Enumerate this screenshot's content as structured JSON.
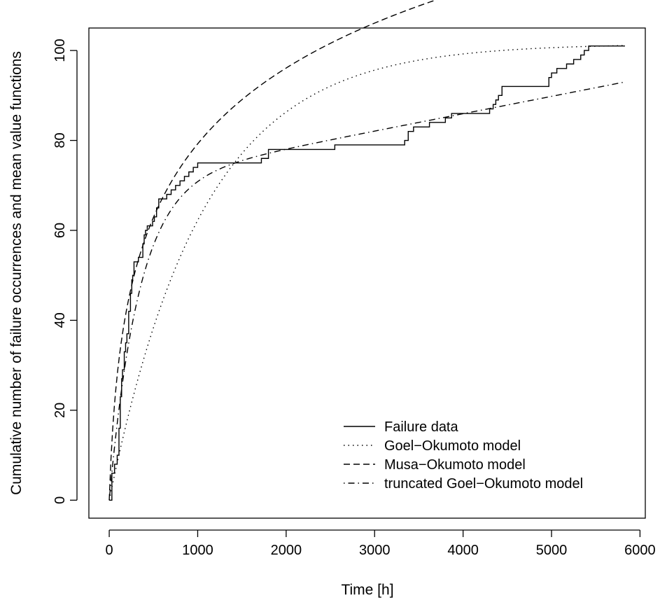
{
  "chart_data": {
    "type": "line",
    "title": "",
    "xlabel": "Time [h]",
    "ylabel": "Cumulative number of failure occurrences and mean value functions",
    "xlim": [
      -230,
      6060
    ],
    "ylim": [
      -4,
      105
    ],
    "xticks": [
      0,
      1000,
      2000,
      3000,
      4000,
      5000,
      6000
    ],
    "yticks": [
      0,
      20,
      40,
      60,
      80,
      100
    ],
    "grid": false,
    "legend_position": "bottom-right",
    "series": [
      {
        "name": "Failure data",
        "style": "solid",
        "step": true,
        "x": [
          0,
          30,
          60,
          90,
          110,
          125,
          140,
          150,
          170,
          185,
          200,
          220,
          240,
          255,
          265,
          280,
          300,
          320,
          330,
          380,
          395,
          410,
          430,
          470,
          490,
          510,
          535,
          560,
          580,
          650,
          700,
          750,
          800,
          850,
          900,
          950,
          1000,
          1040,
          1600,
          1720,
          1800,
          2500,
          2550,
          3340,
          3380,
          3440,
          3520,
          3620,
          3680,
          3800,
          3870,
          4250,
          4300,
          4340,
          4370,
          4400,
          4440,
          4470,
          4970,
          5000,
          5060,
          5170,
          5250,
          5330,
          5370,
          5420,
          5830
        ],
        "y": [
          0,
          6,
          8,
          10,
          16,
          23,
          27,
          29,
          33,
          35,
          37,
          42,
          46,
          49,
          50,
          53,
          53,
          53,
          54,
          57,
          59,
          60,
          61,
          61,
          62,
          63,
          65,
          67,
          67,
          68,
          69,
          70,
          71,
          72,
          73,
          74,
          75,
          75,
          75,
          76,
          78,
          78,
          79,
          80,
          82,
          83,
          83,
          84,
          84,
          85,
          86,
          86,
          87,
          88,
          89,
          90,
          92,
          92,
          94,
          95,
          96,
          97,
          98,
          99,
          100,
          101,
          101
        ]
      },
      {
        "name": "Goel−Okumoto model",
        "style": "dotted",
        "model": {
          "kind": "goel-okumoto",
          "a": 101.5,
          "b": 0.00095
        }
      },
      {
        "name": "Musa−Okumoto model",
        "style": "dashed",
        "model": {
          "kind": "musa-okumoto",
          "a": 25.1,
          "b": 0.0225
        }
      },
      {
        "name": "truncated Goel−Okumoto model",
        "style": "dashdot",
        "model": {
          "kind": "truncated-goel-okumoto",
          "a": 70.5,
          "b": 0.003,
          "c": 0.0038
        }
      }
    ]
  }
}
